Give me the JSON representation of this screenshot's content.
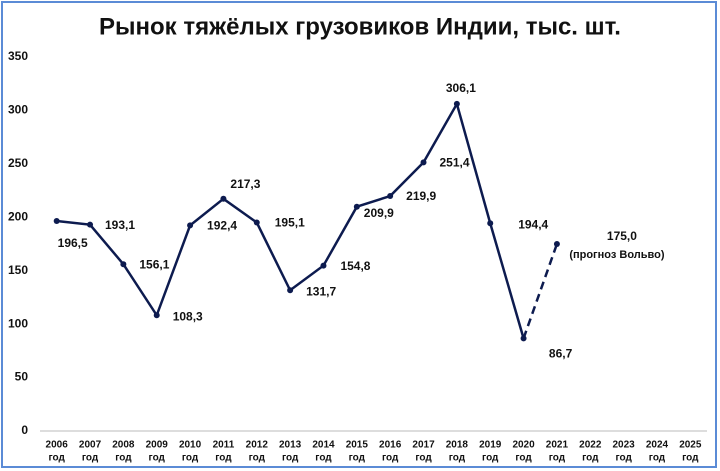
{
  "chart_data": {
    "type": "line",
    "title": "Рынок тяжёлых грузовиков Индии, тыс. шт.",
    "categories": [
      "2006",
      "2007",
      "2008",
      "2009",
      "2010",
      "2011",
      "2012",
      "2013",
      "2014",
      "2015",
      "2016",
      "2017",
      "2018",
      "2019",
      "2020",
      "2021",
      "2022",
      "2023",
      "2024",
      "2025"
    ],
    "category_unit": "год",
    "series": [
      {
        "color": "#0d1b4f",
        "values": [
          196.5,
          193.1,
          156.1,
          108.3,
          192.4,
          217.3,
          195.1,
          131.7,
          154.8,
          209.9,
          219.9,
          251.4,
          306.1,
          194.4,
          86.7,
          175.0,
          null,
          null,
          null,
          null
        ],
        "value_labels": [
          "196,5",
          "193,1",
          "156,1",
          "108,3",
          "192,4",
          "217,3",
          "195,1",
          "131,7",
          "154,8",
          "209,9",
          "219,9",
          "251,4",
          "306,1",
          "194,4",
          "86,7",
          "175,0",
          null,
          null,
          null,
          null
        ]
      }
    ],
    "forecast_note": "(прогноз Вольво)",
    "forecast_dashed": true,
    "ylim": [
      0,
      350
    ],
    "yticks": [
      0,
      50,
      100,
      150,
      200,
      250,
      300,
      350
    ],
    "grid": false
  }
}
